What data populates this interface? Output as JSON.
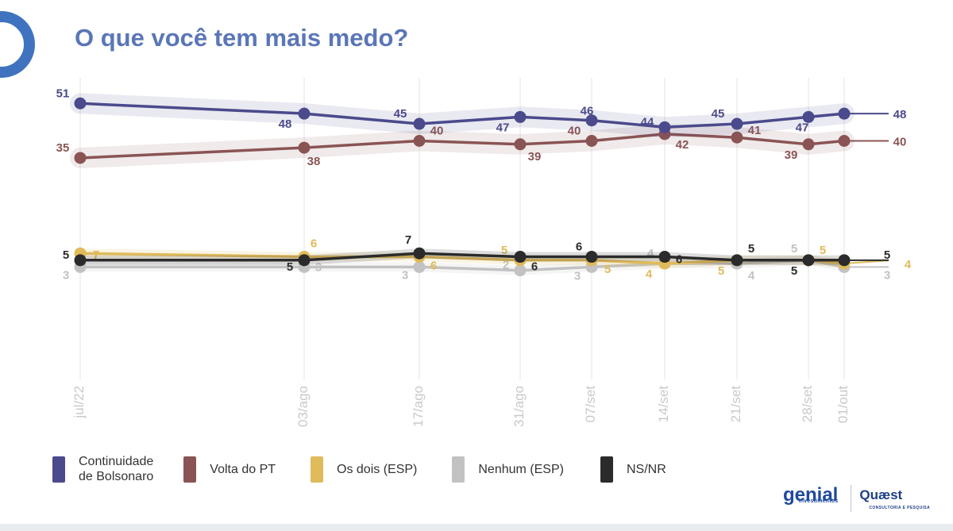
{
  "title": "O que você tem mais medo?",
  "logos": {
    "genial": "genial",
    "genial_sub": "investimentos",
    "quaest": "Quæst",
    "quaest_sub": "CONSULTORIA E PESQUISA"
  },
  "colors": {
    "continuidade": "#4a4a8c",
    "volta_pt": "#8b5454",
    "os_dois": "#e0bb5c",
    "nenhum": "#c2c2c2",
    "nsnr": "#2b2b2b"
  },
  "chart_data": {
    "type": "line",
    "categories": [
      "jul/22",
      "03/ago",
      "17/ago",
      "31/ago",
      "07/set",
      "14/set",
      "21/set",
      "28/set",
      "01/out"
    ],
    "ylim": [
      0,
      55
    ],
    "grid": "vertical",
    "legend_position": "bottom",
    "series": [
      {
        "key": "continuidade",
        "name": "Continuidade de Bolsonaro",
        "values": [
          51,
          48,
          45,
          47,
          46,
          44,
          45,
          47,
          48
        ],
        "labels": [
          "51",
          "48",
          "45",
          "47",
          "46",
          "44",
          "45",
          "47",
          "48"
        ]
      },
      {
        "key": "volta_pt",
        "name": "Volta do PT",
        "values": [
          35,
          38,
          40,
          39,
          40,
          42,
          41,
          39,
          40
        ],
        "labels": [
          "35",
          "38",
          "40",
          "39",
          "40",
          "42",
          "41",
          "39",
          "40"
        ]
      },
      {
        "key": "os_dois",
        "name": "Os dois (ESP)",
        "values": [
          7,
          6,
          6,
          5,
          5,
          4,
          5,
          5,
          4
        ],
        "labels": [
          "7",
          "6",
          "6",
          "5",
          "5",
          "4",
          "5",
          "5",
          "4"
        ]
      },
      {
        "key": "nenhum",
        "name": "Nenhum (ESP)",
        "values": [
          3,
          3,
          3,
          2,
          3,
          4,
          4,
          5,
          3
        ],
        "labels": [
          "3",
          "3",
          "3",
          "2",
          "3",
          "4",
          "4",
          "5",
          "3"
        ]
      },
      {
        "key": "nsnr",
        "name": "NS/NR",
        "values": [
          5,
          5,
          7,
          6,
          6,
          6,
          5,
          5,
          5
        ],
        "labels": [
          "5",
          "5",
          "7",
          "6",
          "6",
          "6",
          "5",
          "5",
          "5"
        ]
      }
    ]
  },
  "legend": [
    {
      "key": "continuidade",
      "label": "Continuidade\nde Bolsonaro"
    },
    {
      "key": "volta_pt",
      "label": "Volta do PT"
    },
    {
      "key": "os_dois",
      "label": "Os dois (ESP)"
    },
    {
      "key": "nenhum",
      "label": "Nenhum (ESP)"
    },
    {
      "key": "nsnr",
      "label": "NS/NR"
    }
  ]
}
